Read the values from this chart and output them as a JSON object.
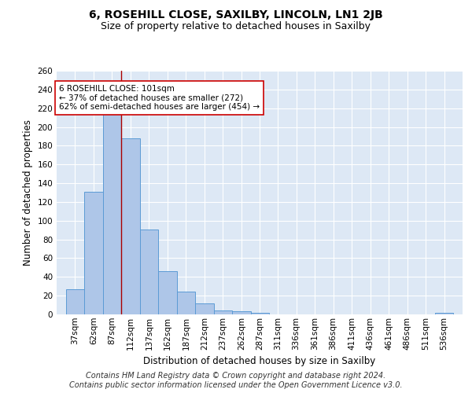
{
  "title1": "6, ROSEHILL CLOSE, SAXILBY, LINCOLN, LN1 2JB",
  "title2": "Size of property relative to detached houses in Saxilby",
  "xlabel": "Distribution of detached houses by size in Saxilby",
  "ylabel": "Number of detached properties",
  "categories": [
    "37sqm",
    "62sqm",
    "87sqm",
    "112sqm",
    "137sqm",
    "162sqm",
    "187sqm",
    "212sqm",
    "237sqm",
    "262sqm",
    "287sqm",
    "311sqm",
    "336sqm",
    "361sqm",
    "386sqm",
    "411sqm",
    "436sqm",
    "461sqm",
    "486sqm",
    "511sqm",
    "536sqm"
  ],
  "bar_color": "#aec6e8",
  "bar_edge_color": "#5b9bd5",
  "background_color": "#dde8f5",
  "grid_color": "#ffffff",
  "vline_color": "#aa0000",
  "annotation_text": "6 ROSEHILL CLOSE: 101sqm\n← 37% of detached houses are smaller (272)\n62% of semi-detached houses are larger (454) →",
  "annotation_box_color": "#ffffff",
  "annotation_box_edge": "#cc0000",
  "ylim": [
    0,
    260
  ],
  "yticks": [
    0,
    20,
    40,
    60,
    80,
    100,
    120,
    140,
    160,
    180,
    200,
    220,
    240,
    260
  ],
  "bin_edges": [
    37,
    62,
    87,
    112,
    137,
    162,
    187,
    212,
    237,
    262,
    287,
    311,
    336,
    361,
    386,
    411,
    436,
    461,
    486,
    511,
    536,
    561
  ],
  "counts": [
    27,
    131,
    221,
    188,
    91,
    46,
    24,
    12,
    4,
    3,
    2,
    0,
    0,
    0,
    0,
    0,
    0,
    0,
    0,
    0,
    2
  ],
  "vline_x_bin": 2,
  "footer1": "Contains HM Land Registry data © Crown copyright and database right 2024.",
  "footer2": "Contains public sector information licensed under the Open Government Licence v3.0.",
  "title1_fontsize": 10,
  "title2_fontsize": 9,
  "axis_fontsize": 8.5,
  "tick_fontsize": 7.5,
  "footer_fontsize": 7
}
